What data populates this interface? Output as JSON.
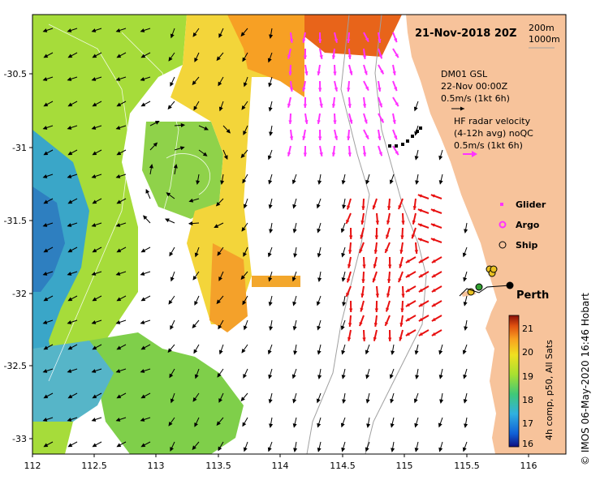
{
  "map": {
    "title": "21-Nov-2018 20Z",
    "depth_contours": [
      "200m",
      "1000m"
    ],
    "x_axis_ticks": [
      "112",
      "112.5",
      "113",
      "113.5",
      "114",
      "114.5",
      "115",
      "115.5",
      "116"
    ],
    "y_axis_ticks": [
      "-30.5",
      "-31",
      "-31.5",
      "-32",
      "-32.5",
      "-33"
    ],
    "lon_range": [
      112,
      116.3
    ],
    "lat_range": [
      -33.15,
      -30.1
    ],
    "wind": {
      "station": "DM01 GSL",
      "time": "22-Nov 00:00Z",
      "scale": "0.5m/s (1kt 6h)"
    },
    "radar": {
      "label_line1": "HF radar velocity",
      "label_line2": "(4-12h avg) noQC",
      "scale": "0.5m/s (1kt 6h)"
    },
    "legend": {
      "glider": "Glider",
      "argo": "Argo",
      "ship": "Ship"
    },
    "city": "Perth",
    "colorbar": {
      "ticks": [
        "21",
        "20",
        "19",
        "18",
        "17",
        "16"
      ],
      "title": "4h comp, p50, All Sats",
      "range": [
        16,
        21.5
      ]
    },
    "credit": "© IMOS 06-May-2020 16:46 Hobart",
    "colors": {
      "land": "#f7c39b",
      "radar_arrows": "#e81010",
      "glider": "#ff33ff",
      "current_arrows": "#000000"
    }
  }
}
